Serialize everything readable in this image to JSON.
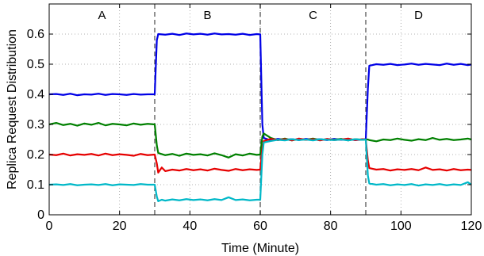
{
  "chart_data": {
    "type": "line",
    "title": "",
    "xlabel": "Time (Minute)",
    "ylabel": "Replica Request Distribution",
    "xlim": [
      0,
      120
    ],
    "ylim": [
      0,
      0.7
    ],
    "xticks": [
      0,
      20,
      40,
      60,
      80,
      100,
      120
    ],
    "yticks": [
      0,
      0.1,
      0.2,
      0.3,
      0.4,
      0.5,
      0.6
    ],
    "ytick_labels": [
      "0",
      "0.1",
      "0.2",
      "0.3",
      "0.4",
      "0.5",
      "0.6"
    ],
    "grid": true,
    "legend": "none",
    "phase_dividers": [
      30,
      60,
      90
    ],
    "phases": [
      {
        "label": "A",
        "x": 15
      },
      {
        "label": "B",
        "x": 45
      },
      {
        "label": "C",
        "x": 75
      },
      {
        "label": "D",
        "x": 105
      }
    ],
    "series": [
      {
        "color": "#0000e6",
        "points": [
          [
            0,
            0.4
          ],
          [
            2,
            0.401
          ],
          [
            4,
            0.398
          ],
          [
            6,
            0.402
          ],
          [
            8,
            0.397
          ],
          [
            10,
            0.4
          ],
          [
            12,
            0.399
          ],
          [
            14,
            0.402
          ],
          [
            16,
            0.398
          ],
          [
            18,
            0.401
          ],
          [
            20,
            0.4
          ],
          [
            22,
            0.398
          ],
          [
            24,
            0.401
          ],
          [
            26,
            0.399
          ],
          [
            28,
            0.4
          ],
          [
            30,
            0.4
          ],
          [
            30.6,
            0.58
          ],
          [
            31,
            0.6
          ],
          [
            33,
            0.598
          ],
          [
            35,
            0.601
          ],
          [
            37,
            0.597
          ],
          [
            39,
            0.602
          ],
          [
            41,
            0.599
          ],
          [
            43,
            0.601
          ],
          [
            45,
            0.598
          ],
          [
            47,
            0.602
          ],
          [
            49,
            0.599
          ],
          [
            51,
            0.6
          ],
          [
            53,
            0.598
          ],
          [
            55,
            0.601
          ],
          [
            57,
            0.597
          ],
          [
            59,
            0.6
          ],
          [
            60,
            0.599
          ],
          [
            60.6,
            0.3
          ],
          [
            61,
            0.255
          ],
          [
            63,
            0.247
          ],
          [
            65,
            0.252
          ],
          [
            67,
            0.249
          ],
          [
            69,
            0.251
          ],
          [
            71,
            0.248
          ],
          [
            73,
            0.252
          ],
          [
            75,
            0.249
          ],
          [
            77,
            0.251
          ],
          [
            79,
            0.248
          ],
          [
            81,
            0.252
          ],
          [
            83,
            0.249
          ],
          [
            85,
            0.251
          ],
          [
            87,
            0.248
          ],
          [
            89,
            0.25
          ],
          [
            90,
            0.251
          ],
          [
            90.6,
            0.42
          ],
          [
            91,
            0.495
          ],
          [
            93,
            0.5
          ],
          [
            95,
            0.498
          ],
          [
            97,
            0.501
          ],
          [
            99,
            0.497
          ],
          [
            101,
            0.499
          ],
          [
            103,
            0.502
          ],
          [
            105,
            0.498
          ],
          [
            107,
            0.501
          ],
          [
            109,
            0.499
          ],
          [
            111,
            0.497
          ],
          [
            113,
            0.502
          ],
          [
            115,
            0.498
          ],
          [
            117,
            0.501
          ],
          [
            119,
            0.497
          ],
          [
            120,
            0.499
          ]
        ]
      },
      {
        "color": "#008000",
        "points": [
          [
            0,
            0.3
          ],
          [
            2,
            0.305
          ],
          [
            4,
            0.298
          ],
          [
            6,
            0.302
          ],
          [
            8,
            0.296
          ],
          [
            10,
            0.303
          ],
          [
            12,
            0.299
          ],
          [
            14,
            0.305
          ],
          [
            16,
            0.297
          ],
          [
            18,
            0.302
          ],
          [
            20,
            0.3
          ],
          [
            22,
            0.297
          ],
          [
            24,
            0.303
          ],
          [
            26,
            0.299
          ],
          [
            28,
            0.302
          ],
          [
            30,
            0.3
          ],
          [
            30.6,
            0.23
          ],
          [
            31,
            0.205
          ],
          [
            33,
            0.198
          ],
          [
            35,
            0.202
          ],
          [
            37,
            0.196
          ],
          [
            39,
            0.203
          ],
          [
            41,
            0.199
          ],
          [
            43,
            0.201
          ],
          [
            45,
            0.197
          ],
          [
            47,
            0.204
          ],
          [
            49,
            0.198
          ],
          [
            51,
            0.19
          ],
          [
            53,
            0.201
          ],
          [
            55,
            0.197
          ],
          [
            57,
            0.203
          ],
          [
            59,
            0.199
          ],
          [
            60,
            0.2
          ],
          [
            60.6,
            0.26
          ],
          [
            61,
            0.27
          ],
          [
            63,
            0.255
          ],
          [
            65,
            0.248
          ],
          [
            67,
            0.253
          ],
          [
            69,
            0.247
          ],
          [
            71,
            0.252
          ],
          [
            73,
            0.249
          ],
          [
            75,
            0.253
          ],
          [
            77,
            0.248
          ],
          [
            79,
            0.251
          ],
          [
            81,
            0.249
          ],
          [
            83,
            0.252
          ],
          [
            85,
            0.247
          ],
          [
            87,
            0.251
          ],
          [
            89,
            0.249
          ],
          [
            90,
            0.25
          ],
          [
            90.6,
            0.25
          ],
          [
            91,
            0.248
          ],
          [
            93,
            0.244
          ],
          [
            95,
            0.25
          ],
          [
            97,
            0.248
          ],
          [
            99,
            0.253
          ],
          [
            101,
            0.249
          ],
          [
            103,
            0.246
          ],
          [
            105,
            0.251
          ],
          [
            107,
            0.248
          ],
          [
            109,
            0.255
          ],
          [
            111,
            0.249
          ],
          [
            113,
            0.252
          ],
          [
            115,
            0.248
          ],
          [
            117,
            0.25
          ],
          [
            119,
            0.253
          ],
          [
            120,
            0.25
          ]
        ]
      },
      {
        "color": "#e60000",
        "points": [
          [
            0,
            0.2
          ],
          [
            2,
            0.198
          ],
          [
            4,
            0.203
          ],
          [
            6,
            0.197
          ],
          [
            8,
            0.201
          ],
          [
            10,
            0.199
          ],
          [
            12,
            0.202
          ],
          [
            14,
            0.197
          ],
          [
            16,
            0.203
          ],
          [
            18,
            0.198
          ],
          [
            20,
            0.201
          ],
          [
            22,
            0.199
          ],
          [
            24,
            0.196
          ],
          [
            26,
            0.202
          ],
          [
            28,
            0.198
          ],
          [
            30,
            0.2
          ],
          [
            30.6,
            0.17
          ],
          [
            31,
            0.14
          ],
          [
            32,
            0.157
          ],
          [
            33,
            0.145
          ],
          [
            35,
            0.15
          ],
          [
            37,
            0.147
          ],
          [
            39,
            0.152
          ],
          [
            41,
            0.148
          ],
          [
            43,
            0.151
          ],
          [
            45,
            0.147
          ],
          [
            47,
            0.153
          ],
          [
            49,
            0.149
          ],
          [
            51,
            0.146
          ],
          [
            53,
            0.152
          ],
          [
            55,
            0.148
          ],
          [
            57,
            0.151
          ],
          [
            59,
            0.149
          ],
          [
            60,
            0.15
          ],
          [
            60.6,
            0.22
          ],
          [
            61,
            0.245
          ],
          [
            63,
            0.252
          ],
          [
            65,
            0.248
          ],
          [
            67,
            0.251
          ],
          [
            69,
            0.247
          ],
          [
            71,
            0.253
          ],
          [
            73,
            0.249
          ],
          [
            75,
            0.251
          ],
          [
            77,
            0.247
          ],
          [
            79,
            0.252
          ],
          [
            81,
            0.248
          ],
          [
            83,
            0.25
          ],
          [
            85,
            0.253
          ],
          [
            87,
            0.248
          ],
          [
            89,
            0.251
          ],
          [
            90,
            0.25
          ],
          [
            90.6,
            0.18
          ],
          [
            91,
            0.155
          ],
          [
            93,
            0.15
          ],
          [
            95,
            0.152
          ],
          [
            97,
            0.147
          ],
          [
            99,
            0.151
          ],
          [
            101,
            0.149
          ],
          [
            103,
            0.152
          ],
          [
            105,
            0.148
          ],
          [
            107,
            0.157
          ],
          [
            109,
            0.149
          ],
          [
            111,
            0.151
          ],
          [
            113,
            0.147
          ],
          [
            115,
            0.152
          ],
          [
            117,
            0.148
          ],
          [
            119,
            0.15
          ],
          [
            120,
            0.149
          ]
        ]
      },
      {
        "color": "#00b8c8",
        "points": [
          [
            0,
            0.1
          ],
          [
            2,
            0.101
          ],
          [
            4,
            0.099
          ],
          [
            6,
            0.102
          ],
          [
            8,
            0.098
          ],
          [
            10,
            0.1
          ],
          [
            12,
            0.101
          ],
          [
            14,
            0.099
          ],
          [
            16,
            0.102
          ],
          [
            18,
            0.098
          ],
          [
            20,
            0.101
          ],
          [
            22,
            0.1
          ],
          [
            24,
            0.099
          ],
          [
            26,
            0.102
          ],
          [
            28,
            0.1
          ],
          [
            30,
            0.1
          ],
          [
            30.6,
            0.06
          ],
          [
            31,
            0.045
          ],
          [
            32,
            0.05
          ],
          [
            33,
            0.047
          ],
          [
            35,
            0.051
          ],
          [
            37,
            0.048
          ],
          [
            39,
            0.052
          ],
          [
            41,
            0.049
          ],
          [
            43,
            0.051
          ],
          [
            45,
            0.048
          ],
          [
            47,
            0.052
          ],
          [
            49,
            0.049
          ],
          [
            51,
            0.058
          ],
          [
            53,
            0.049
          ],
          [
            55,
            0.051
          ],
          [
            57,
            0.048
          ],
          [
            59,
            0.05
          ],
          [
            60,
            0.05
          ],
          [
            60.6,
            0.2
          ],
          [
            61,
            0.24
          ],
          [
            63,
            0.245
          ],
          [
            65,
            0.249
          ],
          [
            67,
            0.247
          ],
          [
            69,
            0.251
          ],
          [
            71,
            0.248
          ],
          [
            73,
            0.25
          ],
          [
            75,
            0.247
          ],
          [
            77,
            0.251
          ],
          [
            79,
            0.249
          ],
          [
            81,
            0.248
          ],
          [
            83,
            0.25
          ],
          [
            85,
            0.247
          ],
          [
            87,
            0.251
          ],
          [
            89,
            0.249
          ],
          [
            90,
            0.25
          ],
          [
            90.6,
            0.13
          ],
          [
            91,
            0.104
          ],
          [
            93,
            0.1
          ],
          [
            95,
            0.102
          ],
          [
            97,
            0.098
          ],
          [
            99,
            0.101
          ],
          [
            101,
            0.099
          ],
          [
            103,
            0.102
          ],
          [
            105,
            0.097
          ],
          [
            107,
            0.101
          ],
          [
            109,
            0.099
          ],
          [
            111,
            0.102
          ],
          [
            113,
            0.098
          ],
          [
            115,
            0.101
          ],
          [
            117,
            0.099
          ],
          [
            119,
            0.108
          ],
          [
            120,
            0.1
          ]
        ]
      }
    ]
  }
}
